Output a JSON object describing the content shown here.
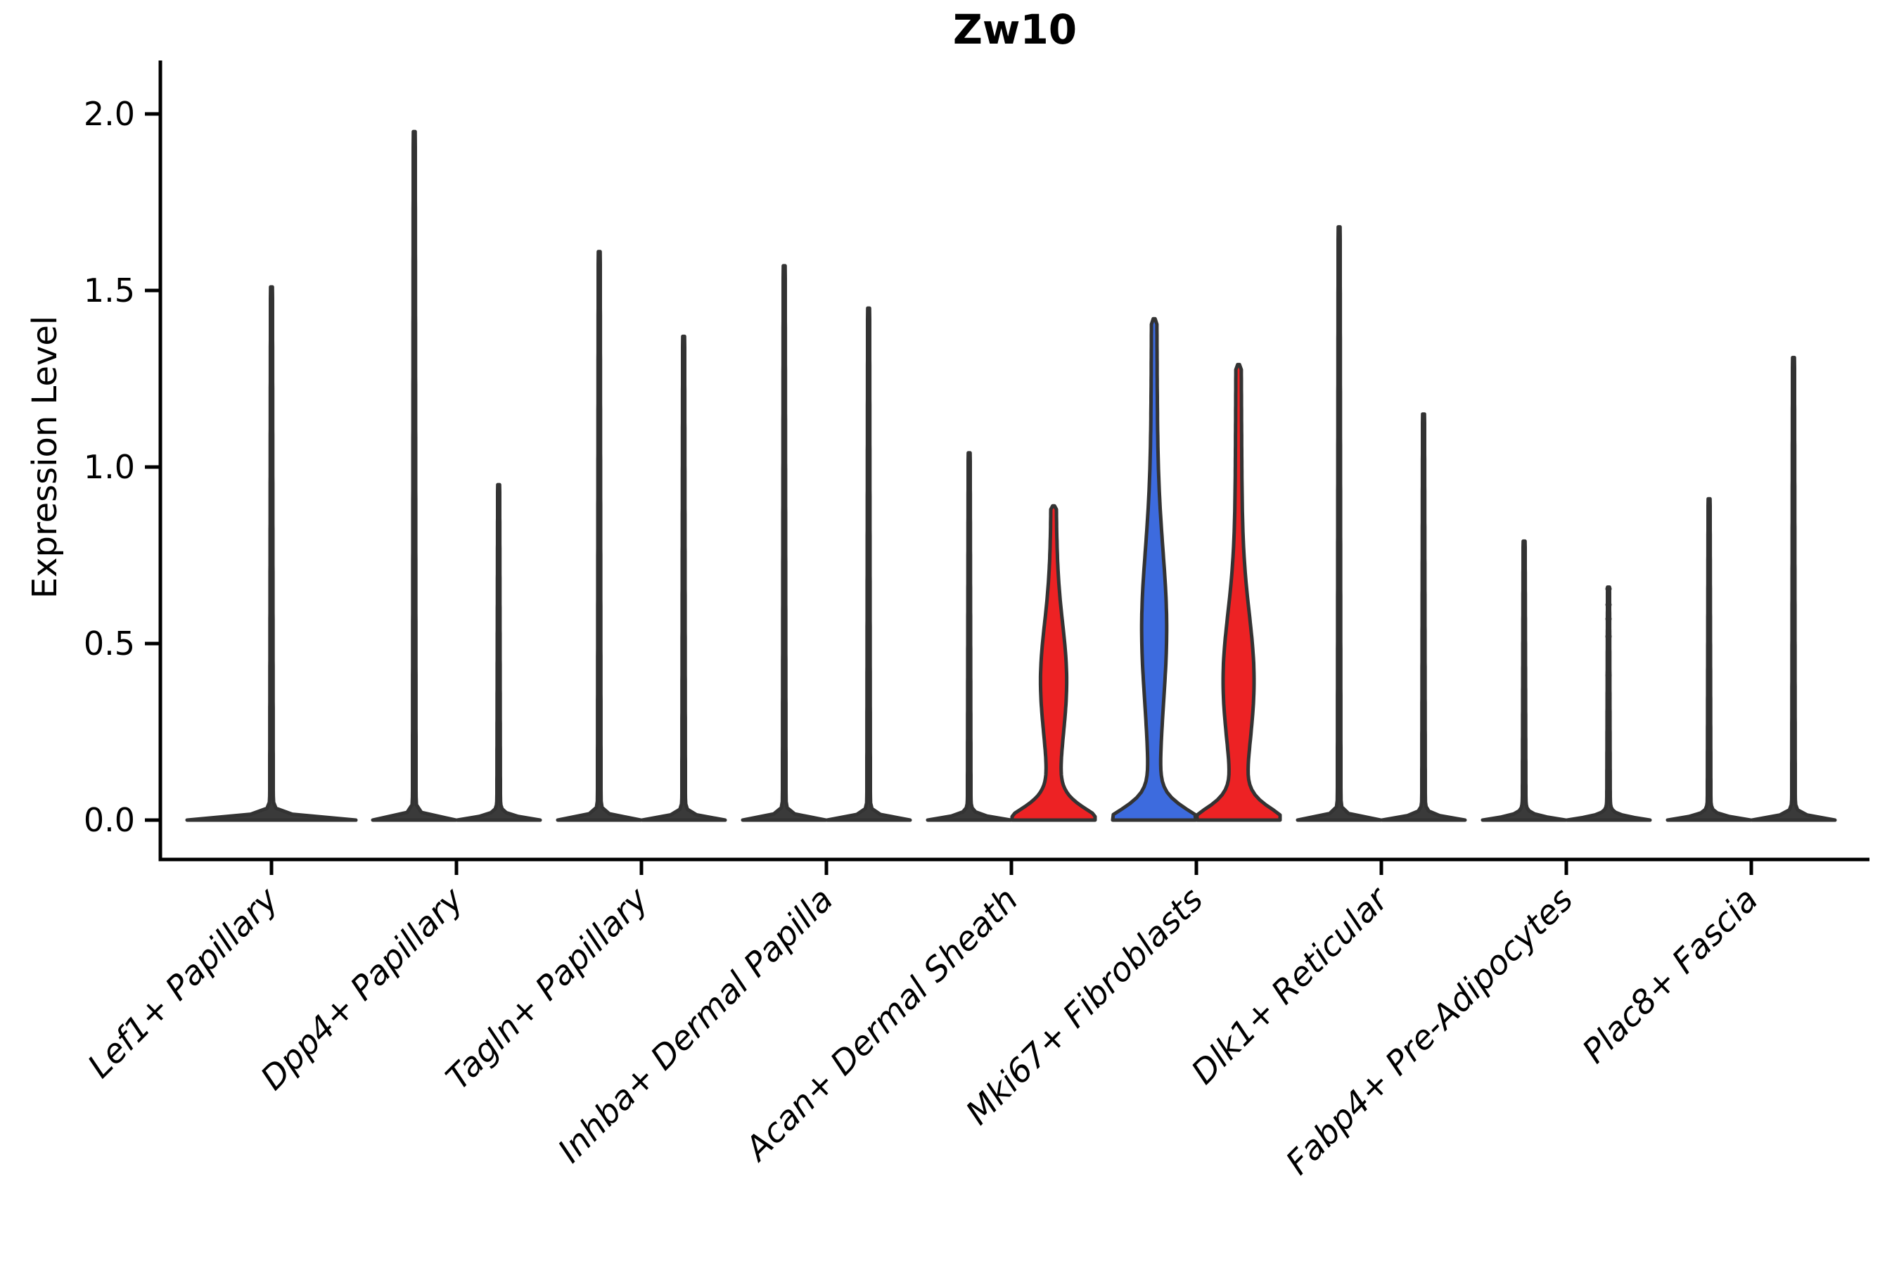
{
  "chart_data": {
    "type": "violin",
    "title": "Zw10",
    "ylabel": "Expression Level",
    "ylim": [
      0,
      2.05
    ],
    "yticks": [
      {
        "value": 0.0,
        "label": "0.0"
      },
      {
        "value": 0.5,
        "label": "0.5"
      },
      {
        "value": 1.0,
        "label": "1.0"
      },
      {
        "value": 1.5,
        "label": "1.5"
      },
      {
        "value": 2.0,
        "label": "2.0"
      }
    ],
    "categories": [
      "Lef1+ Papillary",
      "Dpp4+ Papillary",
      "Tagln+ Papillary",
      "Inhba+ Dermal Papilla",
      "Acan+ Dermal Sheath",
      "Mki67+ Fibroblasts",
      "Dlk1+ Reticular",
      "Fabp4+ Pre-Adipocytes",
      "Plac8+ Fascia"
    ],
    "legend": "none",
    "grid": "off",
    "colors": {
      "red": "#ED2224",
      "blue": "#3D6BDE",
      "thin_fill": "#3A3A3A",
      "outline": "#333333",
      "axis": "#000000"
    },
    "violins": [
      {
        "category_index": 0,
        "position": "center",
        "max": 1.51,
        "style": "thin"
      },
      {
        "category_index": 1,
        "position": "left",
        "max": 1.95,
        "style": "thin"
      },
      {
        "category_index": 1,
        "position": "right",
        "max": 0.95,
        "style": "thin"
      },
      {
        "category_index": 2,
        "position": "left",
        "max": 1.61,
        "style": "thin"
      },
      {
        "category_index": 2,
        "position": "right",
        "max": 1.37,
        "style": "thin"
      },
      {
        "category_index": 3,
        "position": "left",
        "max": 1.57,
        "style": "thin"
      },
      {
        "category_index": 3,
        "position": "right",
        "max": 1.45,
        "style": "thin"
      },
      {
        "category_index": 4,
        "position": "left",
        "max": 1.04,
        "style": "thin"
      },
      {
        "category_index": 4,
        "position": "right",
        "max": 0.89,
        "style": "red",
        "belly": {
          "center": 0.4,
          "width": 0.22,
          "extra": 13
        }
      },
      {
        "category_index": 5,
        "position": "left",
        "max": 1.42,
        "style": "blue",
        "belly": {
          "center": 0.55,
          "width": 0.3,
          "extra": 12
        }
      },
      {
        "category_index": 5,
        "position": "right",
        "max": 1.29,
        "style": "red",
        "belly": {
          "center": 0.4,
          "width": 0.26,
          "extra": 16
        }
      },
      {
        "category_index": 6,
        "position": "left",
        "max": 1.68,
        "style": "thin"
      },
      {
        "category_index": 6,
        "position": "right",
        "max": 1.15,
        "style": "thin"
      },
      {
        "category_index": 7,
        "position": "left",
        "max": 0.79,
        "style": "thin"
      },
      {
        "category_index": 7,
        "position": "right",
        "max": 0.66,
        "style": "thin",
        "dots": [
          0.655,
          0.61,
          0.57,
          0.52,
          0.41,
          0.35,
          0.32,
          0.3,
          0.26,
          0.23
        ]
      },
      {
        "category_index": 8,
        "position": "left",
        "max": 0.91,
        "style": "thin"
      },
      {
        "category_index": 8,
        "position": "right",
        "max": 1.31,
        "style": "thin"
      }
    ]
  }
}
